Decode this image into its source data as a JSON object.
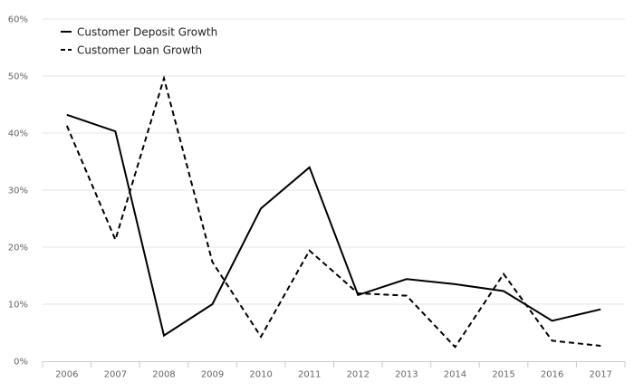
{
  "chart_data": {
    "type": "line",
    "categories": [
      "2006",
      "2007",
      "2008",
      "2009",
      "2010",
      "2011",
      "2012",
      "2013",
      "2014",
      "2015",
      "2016",
      "2017"
    ],
    "series": [
      {
        "name": "Customer Deposit Growth",
        "style": "solid",
        "color": "#000000",
        "values": [
          43.2,
          40.3,
          4.5,
          10.0,
          26.8,
          34.0,
          11.6,
          14.4,
          13.5,
          12.3,
          7.1,
          9.1
        ]
      },
      {
        "name": "Customer Loan Growth",
        "style": "dashed",
        "color": "#000000",
        "values": [
          41.3,
          21.3,
          49.6,
          17.4,
          4.3,
          19.4,
          11.9,
          11.5,
          2.5,
          15.3,
          3.6,
          2.7
        ]
      }
    ],
    "y_ticks": [
      "0%",
      "10%",
      "20%",
      "30%",
      "40%",
      "50%",
      "60%"
    ],
    "ylim": [
      0,
      60
    ],
    "grid": true,
    "legend_position": "top-left",
    "title": "",
    "xlabel": "",
    "ylabel": ""
  }
}
